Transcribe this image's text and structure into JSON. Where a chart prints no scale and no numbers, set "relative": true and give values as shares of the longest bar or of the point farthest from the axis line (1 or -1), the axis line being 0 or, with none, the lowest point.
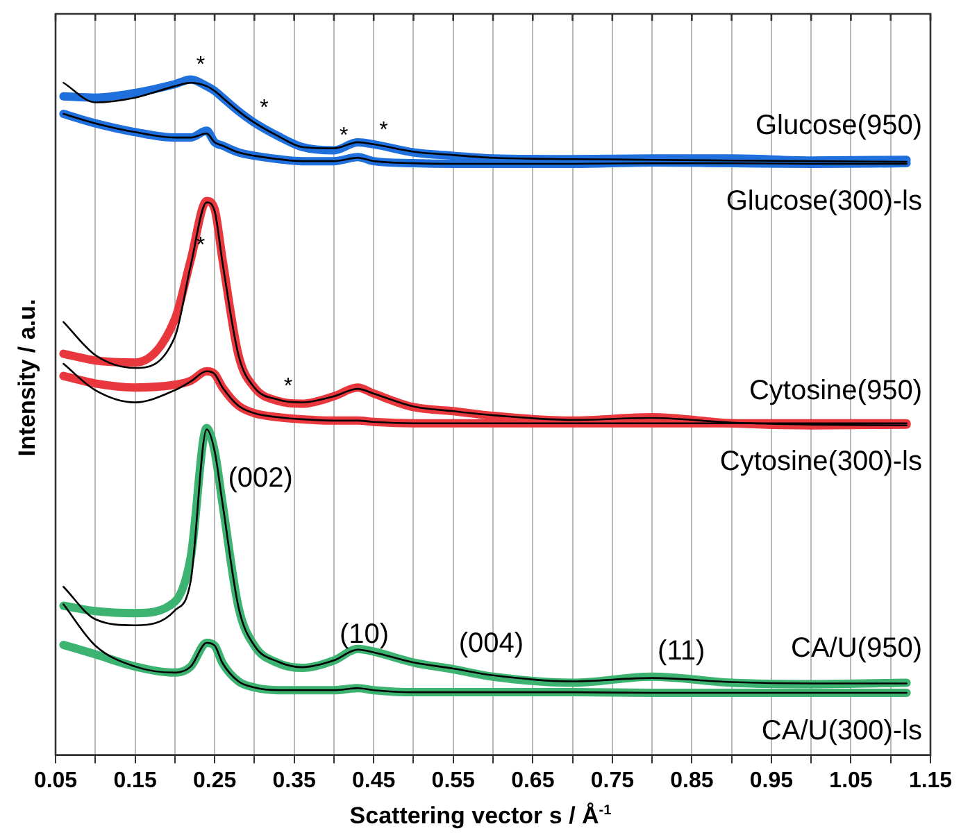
{
  "chart_data": {
    "type": "line",
    "relative": true,
    "xlabel": "Scattering vector s / Å$^{-1}$",
    "ylabel": "Intensity / a.u.",
    "x": [
      0.06,
      0.1,
      0.15,
      0.2,
      0.22,
      0.24,
      0.25,
      0.26,
      0.28,
      0.3,
      0.33,
      0.36,
      0.4,
      0.43,
      0.45,
      0.5,
      0.55,
      0.6,
      0.7,
      0.8,
      0.9,
      1.0,
      1.12
    ],
    "xlim": [
      0.05,
      1.15
    ],
    "xticks": [
      0.05,
      {
        "value": 0.1,
        "label": null
      },
      0.15,
      {
        "value": 0.2,
        "label": null
      },
      0.25,
      {
        "value": 0.3,
        "label": null
      },
      0.35,
      {
        "value": 0.4,
        "label": null
      },
      0.45,
      {
        "value": 0.5,
        "label": null
      },
      0.55,
      {
        "value": 0.6,
        "label": null
      },
      0.65,
      {
        "value": 0.7,
        "label": null
      },
      0.75,
      {
        "value": 0.8,
        "label": null
      },
      0.85,
      {
        "value": 0.9,
        "label": null
      },
      0.95,
      {
        "value": 1.0,
        "label": null
      },
      1.05,
      {
        "value": 1.1,
        "label": null
      },
      1.15
    ],
    "grid": "x",
    "legend": false,
    "marker": "none",
    "line_style": "solid",
    "series": [
      {
        "name": "Glucose(950)",
        "color": "#1f6fdc",
        "values": [
          0.975,
          0.973,
          0.98,
          0.993,
          1.0,
          0.99,
          0.983,
          0.973,
          0.953,
          0.936,
          0.916,
          0.9,
          0.895,
          0.907,
          0.904,
          0.892,
          0.887,
          0.883,
          0.882,
          0.883,
          0.883,
          0.88,
          0.881
        ]
      },
      {
        "name": "Glucose(300)-ls",
        "color": "#1f6fdc",
        "values": [
          0.949,
          0.935,
          0.922,
          0.914,
          0.914,
          0.924,
          0.907,
          0.902,
          0.892,
          0.887,
          0.882,
          0.879,
          0.879,
          0.885,
          0.879,
          0.876,
          0.875,
          0.875,
          0.875,
          0.877,
          0.876,
          0.875,
          0.876
        ]
      },
      {
        "name": "Cytosine(950)",
        "color": "#e8383d",
        "values": [
          0.594,
          0.584,
          0.581,
          0.645,
          0.733,
          0.82,
          0.808,
          0.733,
          0.592,
          0.544,
          0.524,
          0.52,
          0.531,
          0.544,
          0.535,
          0.515,
          0.509,
          0.502,
          0.495,
          0.5,
          0.491,
          0.488,
          0.489
        ]
      },
      {
        "name": "Cytosine(300)-ls",
        "color": "#e8383d",
        "values": [
          0.561,
          0.55,
          0.544,
          0.548,
          0.554,
          0.568,
          0.564,
          0.544,
          0.517,
          0.506,
          0.5,
          0.497,
          0.495,
          0.495,
          0.493,
          0.491,
          0.491,
          0.491,
          0.491,
          0.491,
          0.491,
          0.491,
          0.491
        ]
      },
      {
        "name": "CA/U(950)",
        "color": "#3cb371",
        "values": [
          0.221,
          0.213,
          0.21,
          0.227,
          0.293,
          0.484,
          0.45,
          0.372,
          0.219,
          0.162,
          0.136,
          0.129,
          0.14,
          0.157,
          0.153,
          0.137,
          0.127,
          0.116,
          0.107,
          0.116,
          0.107,
          0.105,
          0.107
        ]
      },
      {
        "name": "CA/U(300)-ls",
        "color": "#3cb371",
        "values": [
          0.163,
          0.149,
          0.131,
          0.122,
          0.131,
          0.166,
          0.162,
          0.136,
          0.109,
          0.1,
          0.096,
          0.096,
          0.096,
          0.099,
          0.096,
          0.093,
          0.093,
          0.093,
          0.093,
          0.092,
          0.092,
          0.092,
          0.092
        ]
      },
      {
        "type": "line",
        "color": "#000000",
        "values": [
          0.995,
          0.966,
          0.973,
          0.99,
          0.995,
          0.99,
          0.983,
          0.973,
          0.953,
          0.936,
          0.916,
          0.9,
          0.898,
          0.907,
          0.904,
          0.893,
          0.888,
          0.884,
          0.882,
          0.881,
          0.88,
          0.879,
          0.878
        ]
      },
      {
        "type": "line",
        "color": "#000000",
        "values": [
          0.949,
          0.935,
          0.922,
          0.914,
          0.914,
          0.92,
          0.907,
          0.902,
          0.892,
          0.887,
          0.882,
          0.879,
          0.879,
          0.884,
          0.879,
          0.876,
          0.875,
          0.875,
          0.875,
          0.876,
          0.876,
          0.875,
          0.875
        ]
      },
      {
        "type": "line",
        "color": "#000000",
        "values": [
          0.641,
          0.592,
          0.573,
          0.619,
          0.725,
          0.818,
          0.805,
          0.728,
          0.592,
          0.544,
          0.526,
          0.522,
          0.531,
          0.542,
          0.535,
          0.516,
          0.509,
          0.503,
          0.496,
          0.499,
          0.492,
          0.489,
          0.488
        ]
      },
      {
        "type": "line",
        "color": "#000000",
        "values": [
          0.579,
          0.54,
          0.522,
          0.54,
          0.553,
          0.568,
          0.564,
          0.544,
          0.517,
          0.506,
          0.5,
          0.497,
          0.495,
          0.495,
          0.493,
          0.491,
          0.491,
          0.491,
          0.491,
          0.491,
          0.491,
          0.491,
          0.491
        ]
      },
      {
        "type": "line",
        "color": "#000000",
        "values": [
          0.249,
          0.201,
          0.192,
          0.214,
          0.258,
          0.482,
          0.45,
          0.372,
          0.219,
          0.162,
          0.138,
          0.13,
          0.14,
          0.156,
          0.152,
          0.137,
          0.128,
          0.118,
          0.109,
          0.114,
          0.108,
          0.106,
          0.106
        ]
      },
      {
        "type": "line",
        "color": "#000000",
        "values": [
          0.223,
          0.162,
          0.131,
          0.122,
          0.131,
          0.166,
          0.162,
          0.136,
          0.109,
          0.1,
          0.096,
          0.096,
          0.096,
          0.099,
          0.096,
          0.093,
          0.093,
          0.093,
          0.093,
          0.092,
          0.092,
          0.092,
          0.092
        ]
      }
    ],
    "annotations": [
      {
        "text": "*",
        "x": 0.22,
        "y": 1.0
      },
      {
        "text": "*",
        "x": 0.3,
        "y": 0.936
      },
      {
        "text": "*",
        "x": 0.4,
        "y": 0.895
      },
      {
        "text": "*",
        "x": 0.45,
        "y": 0.904
      },
      {
        "text": "*",
        "x": 0.22,
        "y": 0.733
      },
      {
        "text": "*",
        "x": 0.33,
        "y": 0.524
      },
      {
        "text": "(002)",
        "x": 0.26,
        "y": 0.372
      },
      {
        "text": "(10)",
        "x": 0.4,
        "y": 0.14
      },
      {
        "text": "(004)",
        "x": 0.55,
        "y": 0.127
      },
      {
        "text": "(11)",
        "x": 0.8,
        "y": 0.116
      }
    ]
  }
}
